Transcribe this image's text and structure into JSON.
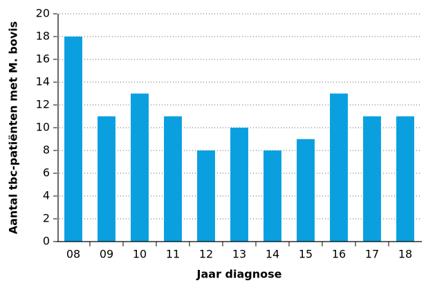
{
  "chart_data": {
    "type": "bar",
    "y_label": "Aantal tbc-patiënten met M. bovis",
    "x_label": "Jaar diagnose",
    "categories": [
      "08",
      "09",
      "10",
      "11",
      "12",
      "13",
      "14",
      "15",
      "16",
      "17",
      "18"
    ],
    "values": [
      18,
      11,
      13,
      11,
      8,
      10,
      8,
      9,
      13,
      11,
      11
    ],
    "color": "#0aa0e0",
    "ylim": [
      0,
      20
    ],
    "yticks": [
      0,
      2,
      4,
      6,
      8,
      10,
      12,
      14,
      16,
      18,
      20
    ],
    "grid": true
  }
}
